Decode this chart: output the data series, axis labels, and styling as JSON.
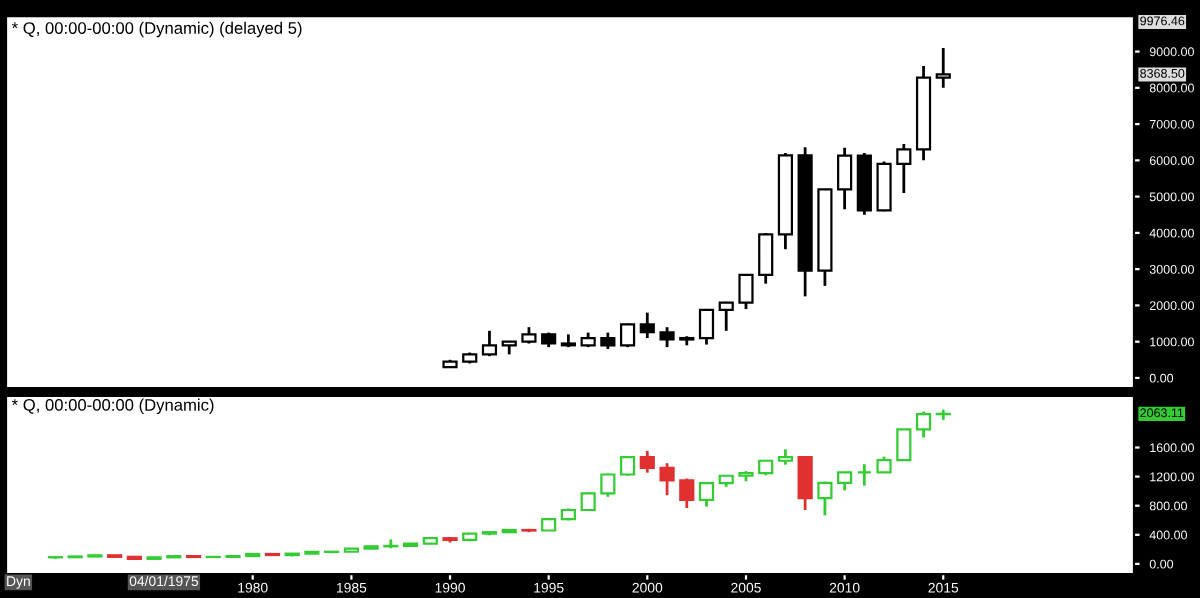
{
  "chart_data": [
    {
      "type": "candlestick",
      "title": "* Q, 00:00-00:00 (Dynamic) (delayed 5)",
      "x": [
        "1990",
        "1991",
        "1992",
        "1993",
        "1994",
        "1995",
        "1996",
        "1997",
        "1998",
        "1999",
        "2000",
        "2001",
        "2002",
        "2003",
        "2004",
        "2005",
        "2006",
        "2007",
        "2008",
        "2009",
        "2010",
        "2011",
        "2012",
        "2013",
        "2014",
        "2015"
      ],
      "ohlc": [
        [
          300,
          500,
          280,
          450
        ],
        [
          450,
          700,
          400,
          650
        ],
        [
          650,
          1300,
          600,
          900
        ],
        [
          900,
          1000,
          650,
          1000
        ],
        [
          1000,
          1400,
          950,
          1200
        ],
        [
          1200,
          1250,
          850,
          950
        ],
        [
          950,
          1200,
          850,
          900
        ],
        [
          900,
          1250,
          850,
          1100
        ],
        [
          1100,
          1250,
          800,
          900
        ],
        [
          900,
          1500,
          850,
          1480
        ],
        [
          1480,
          1800,
          1100,
          1260
        ],
        [
          1260,
          1400,
          850,
          1060
        ],
        [
          1060,
          1150,
          900,
          1100
        ],
        [
          1100,
          1900,
          920,
          1880
        ],
        [
          1880,
          2100,
          1300,
          2080
        ],
        [
          2080,
          2850,
          1900,
          2840
        ],
        [
          2840,
          4000,
          2600,
          3960
        ],
        [
          3960,
          6200,
          3550,
          6140
        ],
        [
          6140,
          6360,
          2250,
          2960
        ],
        [
          2960,
          5200,
          2540,
          5200
        ],
        [
          5200,
          6350,
          4650,
          6130
        ],
        [
          6130,
          6200,
          4500,
          4620
        ],
        [
          4620,
          5970,
          4600,
          5900
        ],
        [
          5900,
          6450,
          5100,
          6300
        ],
        [
          6300,
          8600,
          6000,
          8280
        ],
        [
          8280,
          9100,
          8000,
          8368.5
        ]
      ],
      "color": "#000000",
      "xlim": [
        "1967-07",
        "2024-09"
      ],
      "ylim": [
        -280,
        9976.46
      ],
      "yticks": [
        {
          "value": 0,
          "label": "0.00"
        },
        {
          "value": 1000,
          "label": "1000.00"
        },
        {
          "value": 2000,
          "label": "2000.00"
        },
        {
          "value": 3000,
          "label": "3000.00"
        },
        {
          "value": 4000,
          "label": "4000.00"
        },
        {
          "value": 5000,
          "label": "5000.00"
        },
        {
          "value": 6000,
          "label": "6000.00"
        },
        {
          "value": 7000,
          "label": "7000.00"
        },
        {
          "value": 8000,
          "label": "8000.00"
        },
        {
          "value": 9000,
          "label": "9000.00"
        }
      ],
      "tick_labels": "y",
      "annotations": [
        "9976.46",
        "8368.50"
      ]
    },
    {
      "type": "candlestick",
      "title": "* Q, 00:00-00:00 (Dynamic)",
      "x": [
        "1970",
        "1971",
        "1972",
        "1973",
        "1974",
        "1975",
        "1976",
        "1977",
        "1978",
        "1979",
        "1980",
        "1981",
        "1982",
        "1983",
        "1984",
        "1985",
        "1986",
        "1987",
        "1988",
        "1989",
        "1990",
        "1991",
        "1992",
        "1993",
        "1994",
        "1995",
        "1996",
        "1997",
        "1998",
        "1999",
        "2000",
        "2001",
        "2002",
        "2003",
        "2004",
        "2005",
        "2006",
        "2007",
        "2008",
        "2009",
        "2010",
        "2011",
        "2012",
        "2013",
        "2014",
        "2015"
      ],
      "ohlc": [
        [
          90,
          105,
          70,
          92
        ],
        [
          92,
          105,
          90,
          102
        ],
        [
          102,
          120,
          100,
          118
        ],
        [
          118,
          121,
          92,
          97
        ],
        [
          97,
          100,
          62,
          69
        ],
        [
          69,
          96,
          66,
          90
        ],
        [
          90,
          108,
          88,
          107
        ],
        [
          107,
          107,
          90,
          95
        ],
        [
          95,
          107,
          87,
          96
        ],
        [
          96,
          111,
          96,
          108
        ],
        [
          108,
          141,
          98,
          136
        ],
        [
          136,
          138,
          112,
          122
        ],
        [
          122,
          143,
          102,
          141
        ],
        [
          141,
          172,
          138,
          165
        ],
        [
          165,
          170,
          147,
          167
        ],
        [
          167,
          212,
          163,
          211
        ],
        [
          211,
          254,
          203,
          242
        ],
        [
          242,
          337,
          216,
          247
        ],
        [
          247,
          284,
          242,
          278
        ],
        [
          278,
          360,
          275,
          353
        ],
        [
          353,
          370,
          295,
          330
        ],
        [
          330,
          418,
          311,
          417
        ],
        [
          417,
          442,
          394,
          436
        ],
        [
          436,
          471,
          429,
          466
        ],
        [
          466,
          482,
          435,
          459
        ],
        [
          459,
          622,
          459,
          616
        ],
        [
          616,
          762,
          598,
          741
        ],
        [
          741,
          984,
          737,
          970
        ],
        [
          970,
          1242,
          923,
          1229
        ],
        [
          1229,
          1470,
          1212,
          1469
        ],
        [
          1469,
          1553,
          1254,
          1320
        ],
        [
          1320,
          1384,
          945,
          1148
        ],
        [
          1148,
          1173,
          768,
          880
        ],
        [
          880,
          1112,
          788,
          1112
        ],
        [
          1112,
          1217,
          1060,
          1212
        ],
        [
          1212,
          1275,
          1137,
          1248
        ],
        [
          1248,
          1431,
          1219,
          1418
        ],
        [
          1418,
          1576,
          1364,
          1468
        ],
        [
          1468,
          1472,
          741,
          903
        ],
        [
          903,
          1130,
          667,
          1115
        ],
        [
          1115,
          1262,
          1011,
          1258
        ],
        [
          1258,
          1371,
          1075,
          1258
        ],
        [
          1258,
          1474,
          1250,
          1426
        ],
        [
          1426,
          1849,
          1426,
          1848
        ],
        [
          1848,
          2094,
          1737,
          2059
        ],
        [
          2059,
          2120,
          1980,
          2063.11
        ]
      ],
      "colors": [
        "#33cc33",
        "#33cc33",
        "#33cc33",
        "#e03030",
        "#e03030",
        "#33cc33",
        "#33cc33",
        "#e03030",
        "#33cc33",
        "#33cc33",
        "#33cc33",
        "#e03030",
        "#33cc33",
        "#33cc33",
        "#33cc33",
        "#33cc33",
        "#33cc33",
        "#33cc33",
        "#33cc33",
        "#33cc33",
        "#e03030",
        "#33cc33",
        "#33cc33",
        "#33cc33",
        "#e03030",
        "#33cc33",
        "#33cc33",
        "#33cc33",
        "#33cc33",
        "#33cc33",
        "#e03030",
        "#e03030",
        "#e03030",
        "#33cc33",
        "#33cc33",
        "#33cc33",
        "#33cc33",
        "#33cc33",
        "#e03030",
        "#33cc33",
        "#33cc33",
        "#33cc33",
        "#33cc33",
        "#33cc33",
        "#33cc33",
        "#33cc33"
      ],
      "xlim": [
        "1967-07",
        "2024-09"
      ],
      "xticks": [
        "1980",
        "1985",
        "1990",
        "1995",
        "2000",
        "2005",
        "2010",
        "2015"
      ],
      "ylim": [
        -140,
        2310
      ],
      "yticks": [
        {
          "value": 0,
          "label": "0.00"
        },
        {
          "value": 400,
          "label": "400.00"
        },
        {
          "value": 800,
          "label": "800.00"
        },
        {
          "value": 1200,
          "label": "1200.00"
        },
        {
          "value": 1600,
          "label": "1600.00"
        }
      ],
      "annotations": [
        "2063.11",
        "04/01/1975",
        "Dyn"
      ]
    }
  ]
}
